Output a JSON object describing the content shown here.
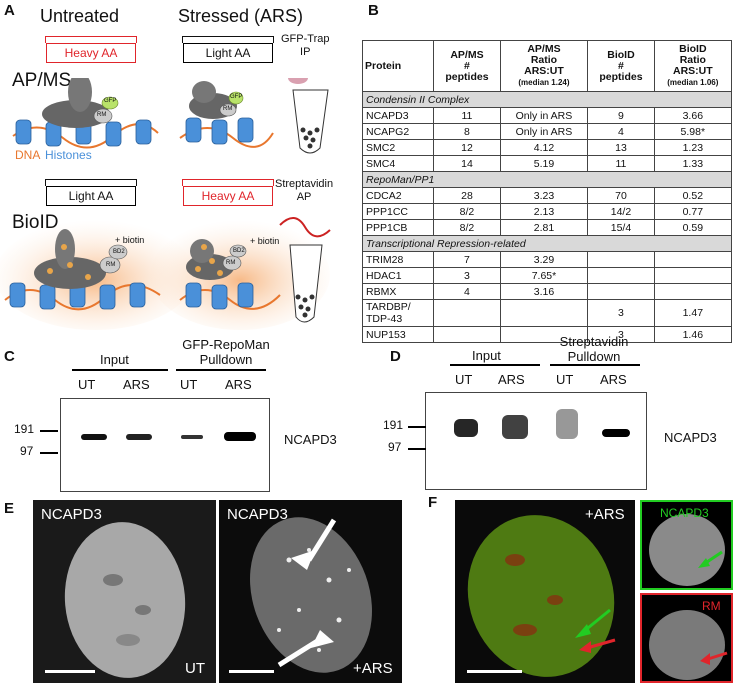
{
  "panels": {
    "a": "A",
    "b": "B",
    "c": "C",
    "d": "D",
    "e": "E",
    "f": "F"
  },
  "panel_a": {
    "col_untreated": "Untreated",
    "col_stressed": "Stressed (ARS)",
    "heavy_aa_1": "Heavy AA",
    "light_aa_1": "Light AA",
    "gfp_trap": "GFP-Trap\nIP",
    "row_apms": "AP/MS",
    "gfp_tag_1": "GFP",
    "gfp_tag_2": "GFP",
    "rm_1": "RM",
    "rm_2": "RM",
    "dna": "DNA",
    "histones": "Histones",
    "light_aa_2": "Light AA",
    "heavy_aa_2": "Heavy AA",
    "streptavidin": "Streptavidin\nAP",
    "row_bioid": "BioID",
    "biotin_1": "+ biotin",
    "biotin_2": "+ biotin",
    "bd2_1": "BD2",
    "bd2_2": "BD2",
    "rm_3": "RM",
    "rm_4": "RM"
  },
  "panel_b": {
    "headers": [
      "Protein",
      "AP/MS\n#\npeptides",
      "AP/MS\nRatio\nARS:UT",
      "BioID\n#\npeptides",
      "BioID\nRatio\nARS:UT"
    ],
    "header_notes": [
      "",
      "",
      "(median 1.24)",
      "",
      "(median 1.06)"
    ],
    "rows": [
      {
        "section": "Condensin II Complex"
      },
      {
        "cells": [
          "NCAPD3",
          "11",
          "Only in ARS",
          "9",
          "3.66"
        ]
      },
      {
        "cells": [
          "NCAPG2",
          "8",
          "Only in ARS",
          "4",
          "5.98*"
        ]
      },
      {
        "cells": [
          "SMC2",
          "12",
          "4.12",
          "13",
          "1.23"
        ]
      },
      {
        "cells": [
          "SMC4",
          "14",
          "5.19",
          "11",
          "1.33"
        ]
      },
      {
        "section": "RepoMan/PP1"
      },
      {
        "cells": [
          "CDCA2",
          "28",
          "3.23",
          "70",
          "0.52"
        ]
      },
      {
        "cells": [
          "PPP1CC",
          "8/2",
          "2.13",
          "14/2",
          "0.77"
        ]
      },
      {
        "cells": [
          "PPP1CB",
          "8/2",
          "2.81",
          "15/4",
          "0.59"
        ]
      },
      {
        "section": "Transcriptional Repression-related"
      },
      {
        "cells": [
          "TRIM28",
          "7",
          "3.29",
          "",
          ""
        ]
      },
      {
        "cells": [
          "HDAC1",
          "3",
          "7.65*",
          "",
          ""
        ]
      },
      {
        "cells": [
          "RBMX",
          "4",
          "3.16",
          "",
          ""
        ]
      },
      {
        "cells": [
          "TARDBP/\nTDP-43",
          "",
          "",
          "3",
          "1.47"
        ]
      },
      {
        "cells": [
          "NUP153",
          "",
          "",
          "3",
          "1.46"
        ]
      }
    ]
  },
  "panel_c": {
    "input": "Input",
    "pulldown": "GFP-RepoMan\nPulldown",
    "lanes": [
      "UT",
      "ARS",
      "UT",
      "ARS"
    ],
    "mw": [
      "191",
      "97"
    ],
    "protein": "NCAPD3"
  },
  "panel_d": {
    "input": "Input",
    "pulldown": "Streptavidin\nPulldown",
    "lanes": [
      "UT",
      "ARS",
      "UT",
      "ARS"
    ],
    "mw": [
      "191",
      "97"
    ],
    "protein": "NCAPD3"
  },
  "panel_e": {
    "left_label": "NCAPD3",
    "left_cond": "UT",
    "right_label": "NCAPD3",
    "right_cond": "+ARS"
  },
  "panel_f": {
    "cond": "+ARS",
    "inset1": "NCAPD3",
    "inset2": "RM"
  },
  "colors": {
    "red": "#e0252b",
    "green": "#22cc22",
    "blue": "#4a90d9",
    "orange": "#e8772e"
  }
}
